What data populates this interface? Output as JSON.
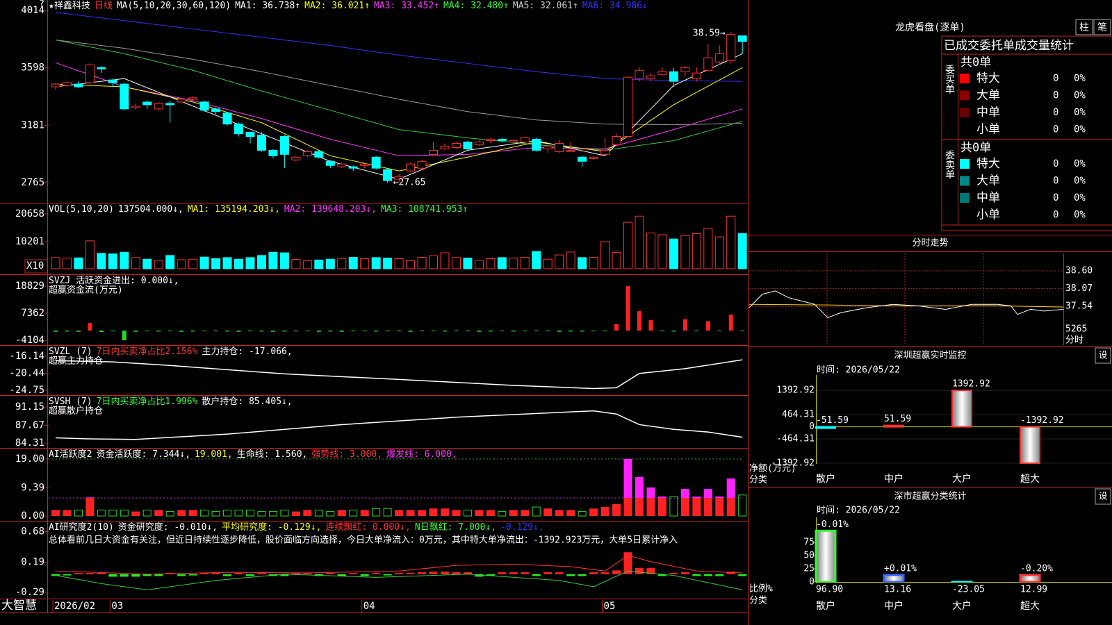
{
  "header": {
    "segments": [
      {
        "text": "★祥鑫科技",
        "color": "#ffffff"
      },
      {
        "text": "日线",
        "color": "#ff3333"
      },
      {
        "text": "MA(5,10,20,30,60,120)",
        "color": "#ffffff"
      },
      {
        "text": "MA1: 36.738↑",
        "color": "#ffffff"
      },
      {
        "text": "MA2: 36.021↑",
        "color": "#ffff00"
      },
      {
        "text": "MA3: 33.452↑",
        "color": "#ff33ff"
      },
      {
        "text": "MA4: 32.480↑",
        "color": "#33ff33"
      },
      {
        "text": "MA5: 32.061↑",
        "color": "#cccccc"
      },
      {
        "text": "MA6: 34.986↓",
        "color": "#3333ff"
      }
    ],
    "corner": "?"
  },
  "kline": {
    "yticks": [
      4014,
      3598,
      3181,
      2765
    ],
    "ylim": [
      2619,
      4090
    ],
    "candles": [
      [
        3460,
        3480,
        3490,
        3440
      ],
      [
        3470,
        3490,
        3500,
        3460
      ],
      [
        3480,
        3460,
        3500,
        3450
      ],
      [
        3490,
        3620,
        3630,
        3480
      ],
      [
        3600,
        3590,
        3610,
        3560
      ],
      [
        3510,
        3490,
        3520,
        3460
      ],
      [
        3480,
        3300,
        3490,
        3290
      ],
      [
        3310,
        3320,
        3340,
        3290
      ],
      [
        3350,
        3330,
        3360,
        3300
      ],
      [
        3300,
        3340,
        3350,
        3290
      ],
      [
        3340,
        3330,
        3360,
        3200
      ],
      [
        3350,
        3370,
        3380,
        3340
      ],
      [
        3370,
        3380,
        3390,
        3360
      ],
      [
        3350,
        3290,
        3360,
        3280
      ],
      [
        3300,
        3280,
        3310,
        3260
      ],
      [
        3270,
        3190,
        3280,
        3180
      ],
      [
        3190,
        3120,
        3200,
        3100
      ],
      [
        3130,
        3100,
        3130,
        3050
      ],
      [
        3110,
        3000,
        3130,
        2990
      ],
      [
        3000,
        2960,
        3010,
        2940
      ],
      [
        3100,
        2970,
        3110,
        2870
      ],
      [
        2930,
        2950,
        2960,
        2920
      ],
      [
        2960,
        2990,
        3000,
        2950
      ],
      [
        2990,
        2950,
        3000,
        2940
      ],
      [
        2920,
        2890,
        2930,
        2870
      ],
      [
        2880,
        2900,
        2910,
        2870
      ],
      [
        2880,
        2870,
        2890,
        2850
      ],
      [
        2890,
        2900,
        2900,
        2870
      ],
      [
        2950,
        2870,
        2960,
        2860
      ],
      [
        2860,
        2780,
        2870,
        2765
      ],
      [
        2790,
        2810,
        2830,
        2765
      ],
      [
        2850,
        2900,
        2910,
        2840
      ],
      [
        2870,
        2920,
        2930,
        2860
      ],
      [
        2970,
        3000,
        3060,
        2960
      ],
      [
        3010,
        3030,
        3050,
        3000
      ],
      [
        3020,
        3050,
        3060,
        3010
      ],
      [
        3060,
        3010,
        3070,
        3000
      ],
      [
        3040,
        3060,
        3070,
        3030
      ],
      [
        3070,
        3080,
        3090,
        3050
      ],
      [
        3080,
        3070,
        3090,
        3060
      ],
      [
        3060,
        3070,
        3080,
        3040
      ],
      [
        3060,
        3090,
        3100,
        3050
      ],
      [
        3080,
        3000,
        3090,
        2990
      ],
      [
        3010,
        3030,
        3040,
        2980
      ],
      [
        2990,
        3050,
        3080,
        2980
      ],
      [
        2990,
        3000,
        3060,
        2990
      ],
      [
        2950,
        2920,
        2960,
        2880
      ],
      [
        2940,
        2950,
        2960,
        2930
      ],
      [
        2970,
        3000,
        3090,
        2960
      ],
      [
        3040,
        3100,
        3120,
        3030
      ],
      [
        3100,
        3530,
        3540,
        3090
      ],
      [
        3520,
        3580,
        3600,
        3500
      ],
      [
        3520,
        3540,
        3560,
        3500
      ],
      [
        3550,
        3570,
        3600,
        3540
      ],
      [
        3570,
        3500,
        3600,
        3460
      ],
      [
        3570,
        3600,
        3610,
        3540
      ],
      [
        3520,
        3560,
        3600,
        3500
      ],
      [
        3580,
        3670,
        3770,
        3570
      ],
      [
        3640,
        3700,
        3760,
        3620
      ],
      [
        3650,
        3840,
        3859,
        3630
      ],
      [
        3830,
        3790,
        3830,
        3700
      ]
    ],
    "high_label": "38.59→",
    "low_label": "←27.65",
    "ma_x": [
      0,
      6,
      12,
      18,
      24,
      30,
      36,
      42,
      48,
      54,
      60
    ],
    "ma_lines": [
      {
        "color": "#3333ff",
        "values": [
          4000,
          3940,
          3880,
          3820,
          3760,
          3690,
          3630,
          3570,
          3520,
          3505,
          3500
        ]
      },
      {
        "color": "#999999",
        "values": [
          3800,
          3740,
          3660,
          3570,
          3470,
          3370,
          3280,
          3220,
          3190,
          3185,
          3195
        ]
      },
      {
        "color": "#33cc33",
        "values": [
          3800,
          3700,
          3580,
          3430,
          3290,
          3150,
          3090,
          3040,
          3000,
          3070,
          3210
        ]
      },
      {
        "color": "#ff33ff",
        "values": [
          3635,
          3460,
          3360,
          3230,
          3080,
          2960,
          2970,
          3020,
          3010,
          3150,
          3300
        ]
      },
      {
        "color": "#ffff00",
        "values": [
          3480,
          3460,
          3350,
          3200,
          2960,
          2850,
          2950,
          3060,
          2990,
          3330,
          3600
        ]
      },
      {
        "color": "#ffffff",
        "values": [
          3460,
          3520,
          3320,
          3120,
          2920,
          2790,
          3000,
          3070,
          2960,
          3470,
          3700
        ]
      }
    ]
  },
  "volume": {
    "segments": [
      {
        "text": "VOL(5,10,20)",
        "color": "#ffffff"
      },
      {
        "text": "137504.000↓,",
        "color": "#ffffff"
      },
      {
        "text": "MA1: 135194.203↓,",
        "color": "#ffff00"
      },
      {
        "text": "MA2: 139648.203↓,",
        "color": "#ff33ff"
      },
      {
        "text": "MA3: 108741.953↑",
        "color": "#33ff33"
      }
    ],
    "yticks": [
      20658,
      10201
    ],
    "ylim": [
      -2090,
      24573
    ],
    "unit_label": "X10",
    "values": [
      4200,
      4000,
      4100,
      10500,
      5800,
      5600,
      6200,
      4200,
      3600,
      3200,
      5000,
      3400,
      3600,
      4400,
      3800,
      4200,
      3600,
      4200,
      5000,
      6200,
      6000,
      3500,
      3000,
      3300,
      3600,
      3900,
      4300,
      3800,
      4200,
      4000,
      3800,
      3000,
      4300,
      4900,
      6000,
      4200,
      4000,
      3200,
      3800,
      4200,
      4000,
      4300,
      6500,
      3600,
      5200,
      6300,
      4200,
      4300,
      10200,
      6200,
      17500,
      19800,
      13500,
      12800,
      11200,
      12500,
      13200,
      15200,
      12000,
      19800,
      13300
    ]
  },
  "svzj": {
    "segments": [
      {
        "text": "SVZJ  活跃资金进出: 0.000↓,",
        "color": "#ffffff"
      }
    ],
    "subtitle": "超赢资金流(万元)",
    "yticks": [
      18829,
      7362,
      -4104
    ],
    "ylim": [
      -6162,
      23533
    ],
    "values": [
      -500,
      -400,
      -500,
      3200,
      -600,
      -300,
      -4100,
      -500,
      -300,
      -400,
      -300,
      -500,
      -400,
      -200,
      -300,
      -400,
      -500,
      -300,
      -400,
      -500,
      -400,
      -300,
      -300,
      -500,
      -400,
      -500,
      -200,
      -300,
      -400,
      -300,
      -200,
      -500,
      -300,
      -200,
      -400,
      -300,
      -300,
      -500,
      -400,
      -300,
      -400,
      -300,
      -200,
      -300,
      -500,
      -400,
      -400,
      -300,
      -300,
      2800,
      18800,
      8200,
      4400,
      -300,
      -400,
      4800,
      -300,
      4000,
      -300,
      6800,
      -300
    ]
  },
  "svzl": {
    "segments": [
      {
        "text": "SVZL (7)",
        "color": "#ffffff"
      },
      {
        "text": "7日内买卖净占比2.156%",
        "color": "#ff3333"
      },
      {
        "text": "主力持仓: -17.066,",
        "color": "#ffffff"
      }
    ],
    "subtitle": "超赢主力持仓",
    "yticks": [
      -16.14,
      -20.44,
      -24.75
    ],
    "ylim": [
      -25.95,
      -13.56
    ],
    "x": [
      0,
      5,
      10,
      20,
      30,
      40,
      47,
      49,
      51,
      55,
      60
    ],
    "values": [
      -17.3,
      -17.6,
      -18.5,
      -20.6,
      -22.0,
      -23.5,
      -24.3,
      -24.1,
      -20.5,
      -19.3,
      -17.066
    ]
  },
  "svsh": {
    "segments": [
      {
        "text": "SVSH (7)",
        "color": "#ffffff"
      },
      {
        "text": "7日内买卖净占比1.996%",
        "color": "#33ff33"
      },
      {
        "text": "散户持仓: 85.405↓,",
        "color": "#ffffff"
      }
    ],
    "subtitle": "超赢散户持仓",
    "yticks": [
      91.15,
      87.67,
      84.31
    ],
    "ylim": [
      83.39,
      93.25
    ],
    "x": [
      0,
      3,
      7,
      15,
      25,
      35,
      47,
      49,
      51,
      54,
      57,
      60
    ],
    "values": [
      85.3,
      85.1,
      85.0,
      86.0,
      87.8,
      89.2,
      90.4,
      89.8,
      87.8,
      86.9,
      86.4,
      85.405
    ]
  },
  "ai": {
    "segments": [
      {
        "text": "AI活跃度2",
        "color": "#ffffff"
      },
      {
        "text": "资金活跃度: 7.344↓,",
        "color": "#ffffff"
      },
      {
        "text": "19.001,",
        "color": "#ffff00"
      },
      {
        "text": "生命线: 1.560,",
        "color": "#ffffff"
      },
      {
        "text": "强势线: 3.000,",
        "color": "#ff3333"
      },
      {
        "text": "爆发线: 6.000,",
        "color": "#ff33ff"
      }
    ],
    "yticks": [
      {
        "value": 19,
        "label": "19.00"
      },
      9.39,
      {
        "value": 0,
        "label": "0.00"
      }
    ],
    "ylim": [
      -1.6,
      22.43
    ],
    "ref_lines": [
      {
        "value": 19,
        "color": "#22aa22"
      },
      {
        "value": 6,
        "color": "#cc33cc"
      }
    ],
    "values": [
      2,
      2,
      2,
      6.2,
      2,
      2,
      2,
      1.5,
      2,
      2,
      1.5,
      2,
      2,
      2,
      1.5,
      2,
      2,
      2,
      1.5,
      1.5,
      2,
      1.5,
      2,
      2,
      1.5,
      2,
      2,
      2,
      2.5,
      2.5,
      2,
      2,
      2,
      2.5,
      2.5,
      2,
      2,
      2,
      2,
      1.5,
      2,
      2,
      3,
      2.5,
      2,
      2,
      1.5,
      2.5,
      3,
      4,
      19,
      13,
      9.5,
      6.5,
      6.5,
      9,
      6.5,
      9,
      6.5,
      12.5,
      7
    ]
  },
  "air": {
    "segments": [
      {
        "text": "AI研究度2(10)",
        "color": "#ffffff"
      },
      {
        "text": "资金研究度: -0.010↓,",
        "color": "#ffffff"
      },
      {
        "text": "平均研究度: -0.129↓,",
        "color": "#ffff00"
      },
      {
        "text": "连续飘红: 0.000↓,",
        "color": "#ff3333"
      },
      {
        "text": "N日飘红: 7.000↓,",
        "color": "#33ff33"
      },
      {
        "text": "-0.129↓,",
        "color": "#3333ff"
      }
    ],
    "subtitle": "总体看前几日大资金有关注，但近日持续性逐步降低，股价面临方向选择，今日大单净流入：0万元，其中特大单净流出：-1392.923万元，大单5日累计净入",
    "yticks": [
      0.68,
      0.19,
      -0.29
    ],
    "ylim": [
      -0.39,
      0.84
    ],
    "values": [
      -0.03,
      -0.02,
      0.02,
      0.02,
      0.02,
      -0.04,
      -0.04,
      -0.04,
      -0.03,
      -0.03,
      0.02,
      -0.03,
      -0.02,
      0.02,
      0.02,
      -0.03,
      0.02,
      -0.03,
      0.02,
      -0.03,
      -0.03,
      0.02,
      0.02,
      -0.03,
      0.02,
      -0.03,
      0.02,
      -0.03,
      0.02,
      -0.02,
      0.02,
      0.02,
      0.03,
      0.04,
      0.04,
      0.03,
      0.03,
      -0.04,
      -0.03,
      0.03,
      0.03,
      0.03,
      -0.03,
      0.03,
      0.03,
      -0.03,
      -0.03,
      0.03,
      0.03,
      0.06,
      0.35,
      0.1,
      0.1,
      -0.03,
      0.02,
      0.03,
      -0.03,
      -0.03,
      -0.03,
      0.04,
      -0.03
    ],
    "lines": [
      {
        "color": "#ff3333",
        "x": [
          0,
          8,
          15,
          22,
          30,
          35,
          40,
          45,
          48,
          50,
          52,
          56,
          60
        ],
        "values": [
          0.05,
          0.0,
          0.03,
          0.02,
          0.05,
          0.14,
          0.16,
          0.12,
          0.05,
          0.3,
          0.2,
          0.05,
          0.02
        ]
      },
      {
        "color": "#33cc33",
        "x": [
          0,
          4,
          8,
          14,
          20,
          28,
          36,
          44,
          47,
          50,
          54,
          60
        ],
        "values": [
          -0.02,
          -0.15,
          -0.25,
          -0.1,
          0.0,
          -0.05,
          0.0,
          -0.1,
          -0.2,
          0.05,
          -0.02,
          -0.25
        ]
      }
    ]
  },
  "footer": {
    "brand": "大智慧",
    "dates": [
      "2026/02",
      "03",
      "04",
      "05"
    ],
    "date_index": [
      0,
      5,
      27,
      48
    ]
  },
  "dragon": {
    "title": "龙虎看盘(逐单)",
    "buttons": [
      "柱",
      "笔"
    ],
    "heading": "已成交委托单成交量统计",
    "sections": [
      {
        "label": "委买单",
        "total": "共0单",
        "rows": [
          {
            "name": "特大",
            "count": 0,
            "pct": "0%",
            "color": "#ff0000"
          },
          {
            "name": "大单",
            "count": 0,
            "pct": "0%",
            "color": "#880000"
          },
          {
            "name": "中单",
            "count": 0,
            "pct": "0%",
            "color": "#660000"
          },
          {
            "name": "小单",
            "count": 0,
            "pct": "0%",
            "color": "#000000"
          }
        ]
      },
      {
        "label": "委卖单",
        "total": "共0单",
        "rows": [
          {
            "name": "特大",
            "count": 0,
            "pct": "0%",
            "color": "#00ffff"
          },
          {
            "name": "大单",
            "count": 0,
            "pct": "0%",
            "color": "#008888"
          },
          {
            "name": "中单",
            "count": 0,
            "pct": "0%",
            "color": "#007777"
          },
          {
            "name": "小单",
            "count": 0,
            "pct": "0%",
            "color": "#000000"
          }
        ]
      }
    ]
  },
  "intraday": {
    "title": "分时走势",
    "yticks": [
      {
        "value": 38.6,
        "label": "38.60"
      },
      38.07,
      37.54
    ],
    "ylim": [
      36.94,
      39.12
    ],
    "volume_label": "5265",
    "time_label": "分时",
    "x": [
      0,
      10,
      20,
      30,
      50,
      60,
      70,
      90,
      110,
      130,
      150,
      170,
      190,
      200,
      205,
      215,
      225,
      240
    ],
    "values": [
      37.5,
      37.9,
      38.0,
      37.8,
      37.6,
      37.2,
      37.35,
      37.5,
      37.6,
      37.55,
      37.45,
      37.6,
      37.6,
      37.55,
      37.3,
      37.45,
      37.4,
      37.45
    ],
    "avg_x": [
      0,
      60,
      120,
      180,
      240
    ],
    "avg_values": [
      37.6,
      37.58,
      37.55,
      37.56,
      37.52
    ],
    "xlim": [
      0,
      240
    ]
  },
  "monitor": {
    "title": "深圳超赢实时监控",
    "button": "设",
    "time": "时间: 2026/05/22",
    "yticks": [
      1392.92,
      464.31,
      0,
      -464.31,
      -1392.92
    ],
    "ylim": [
      -1420,
      1982
    ],
    "categories": [
      "散户",
      "中户",
      "大户",
      "超大"
    ],
    "category_colors": [
      "#00ffff",
      "#ff3333",
      "#ff3333",
      "#ff3333"
    ],
    "values": [
      -51.59,
      51.59,
      1392.92,
      -1392.92
    ],
    "y_title": "净额(万元)",
    "x_title": "分类"
  },
  "stats": {
    "title": "深市超赢分类统计",
    "button": "设",
    "time": "时间: 2026/05/22",
    "yticks": [
      75,
      50,
      25,
      0
    ],
    "ylim": [
      0,
      105
    ],
    "categories": [
      "散户",
      "中户",
      "大户",
      "超大"
    ],
    "category_colors": [
      "#33ff33",
      "#3366ff",
      "#00ffff",
      "#ff3333"
    ],
    "values": [
      96.9,
      13.16,
      -23.05,
      12.99
    ],
    "value_labels": [
      "96.90",
      "13.16",
      "-23.05",
      "12.99"
    ],
    "changes": [
      "-0.01%",
      "+0.01%",
      null,
      "-0.20%"
    ],
    "change_colors": [
      "#33ff33",
      "#ff3333",
      null,
      "#33ff33"
    ],
    "y_title": "比例%",
    "x_title": "分类"
  }
}
